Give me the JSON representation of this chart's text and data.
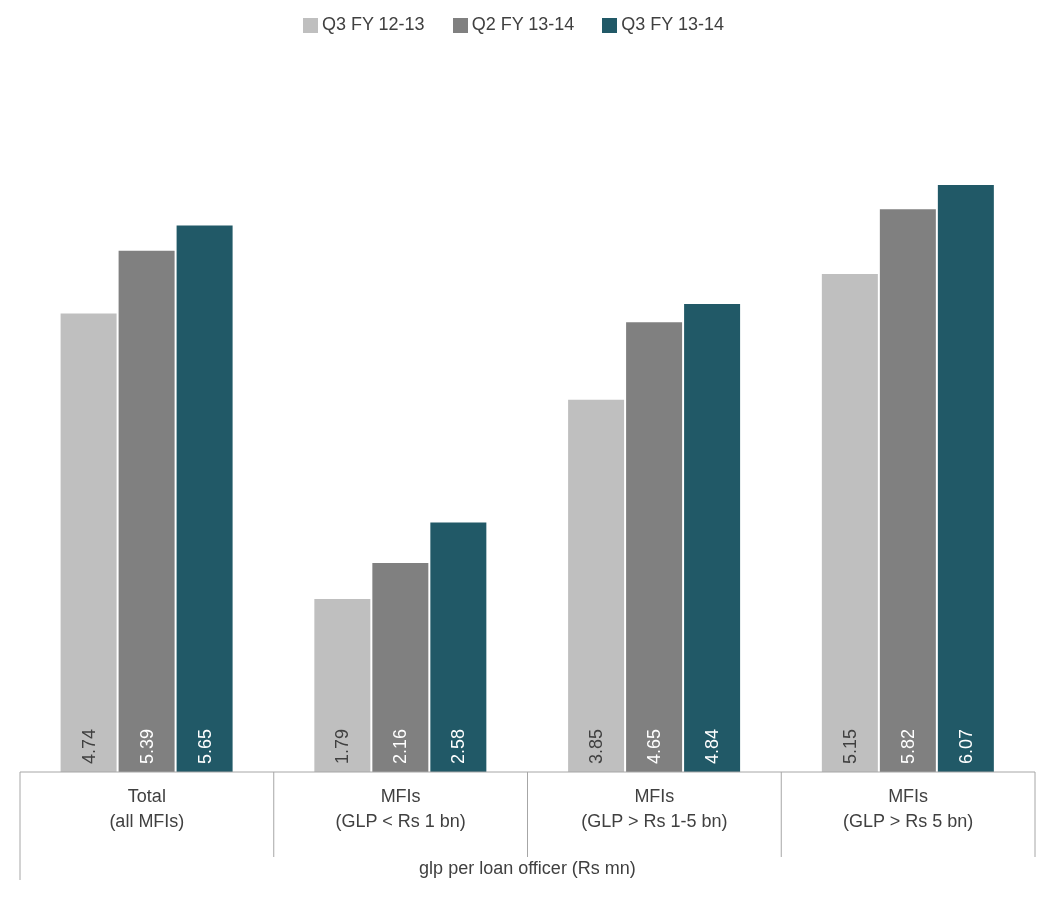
{
  "chart_data": {
    "type": "bar",
    "xlabel": "glp per loan officer (Rs mn)",
    "categories": [
      "Total\n(all MFIs)",
      "MFIs\n(GLP < Rs 1 bn)",
      "MFIs\n(GLP > Rs 1-5 bn)",
      "MFIs\n(GLP > Rs 5 bn)"
    ],
    "series": [
      {
        "name": "Q3 FY 12-13",
        "color": "#bfbfbf",
        "values": [
          4.74,
          1.79,
          3.85,
          5.15
        ]
      },
      {
        "name": "Q2 FY 13-14",
        "color": "#808080",
        "values": [
          5.39,
          2.16,
          4.65,
          5.82
        ]
      },
      {
        "name": "Q3 FY 13-14",
        "color": "#215967",
        "values": [
          5.65,
          2.58,
          4.84,
          6.07
        ]
      }
    ],
    "data_labels": true,
    "legend": "top"
  }
}
